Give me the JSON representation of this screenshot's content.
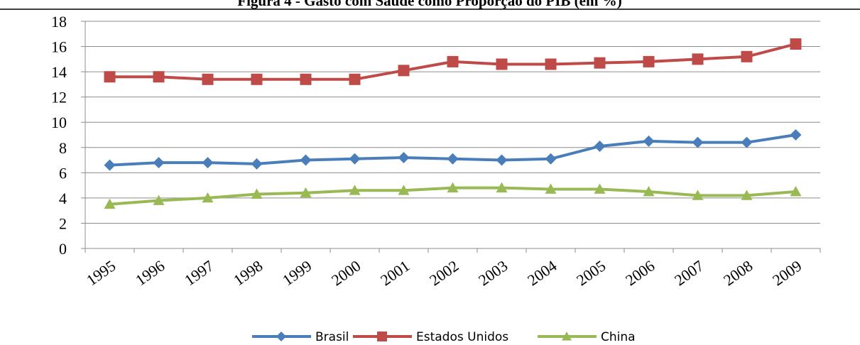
{
  "chart_data": {
    "type": "line",
    "title": "Figura 4 - Gasto com Saúde como Proporção do PIB (em %)",
    "categories": [
      "1995",
      "1996",
      "1997",
      "1998",
      "1999",
      "2000",
      "2001",
      "2002",
      "2003",
      "2004",
      "2005",
      "2006",
      "2007",
      "2008",
      "2009"
    ],
    "series": [
      {
        "name": "Brasil",
        "color": "#4a7ebb",
        "marker": "diamond",
        "values": [
          6.6,
          6.8,
          6.8,
          6.7,
          7.0,
          7.1,
          7.2,
          7.1,
          7.0,
          7.1,
          8.1,
          8.5,
          8.4,
          8.4,
          9.0
        ]
      },
      {
        "name": "Estados Unidos",
        "color": "#be4b48",
        "marker": "square",
        "values": [
          13.6,
          13.6,
          13.4,
          13.4,
          13.4,
          13.4,
          14.1,
          14.8,
          14.6,
          14.6,
          14.7,
          14.8,
          15.0,
          15.2,
          16.2
        ]
      },
      {
        "name": "China",
        "color": "#98b954",
        "marker": "triangle",
        "values": [
          3.5,
          3.8,
          4.0,
          4.3,
          4.4,
          4.6,
          4.6,
          4.8,
          4.8,
          4.7,
          4.7,
          4.5,
          4.2,
          4.2,
          4.5
        ]
      }
    ],
    "ylim": [
      0,
      18
    ],
    "yticks": [
      0,
      2,
      4,
      6,
      8,
      10,
      12,
      14,
      16,
      18
    ],
    "grid": true,
    "legend": "bottom"
  }
}
